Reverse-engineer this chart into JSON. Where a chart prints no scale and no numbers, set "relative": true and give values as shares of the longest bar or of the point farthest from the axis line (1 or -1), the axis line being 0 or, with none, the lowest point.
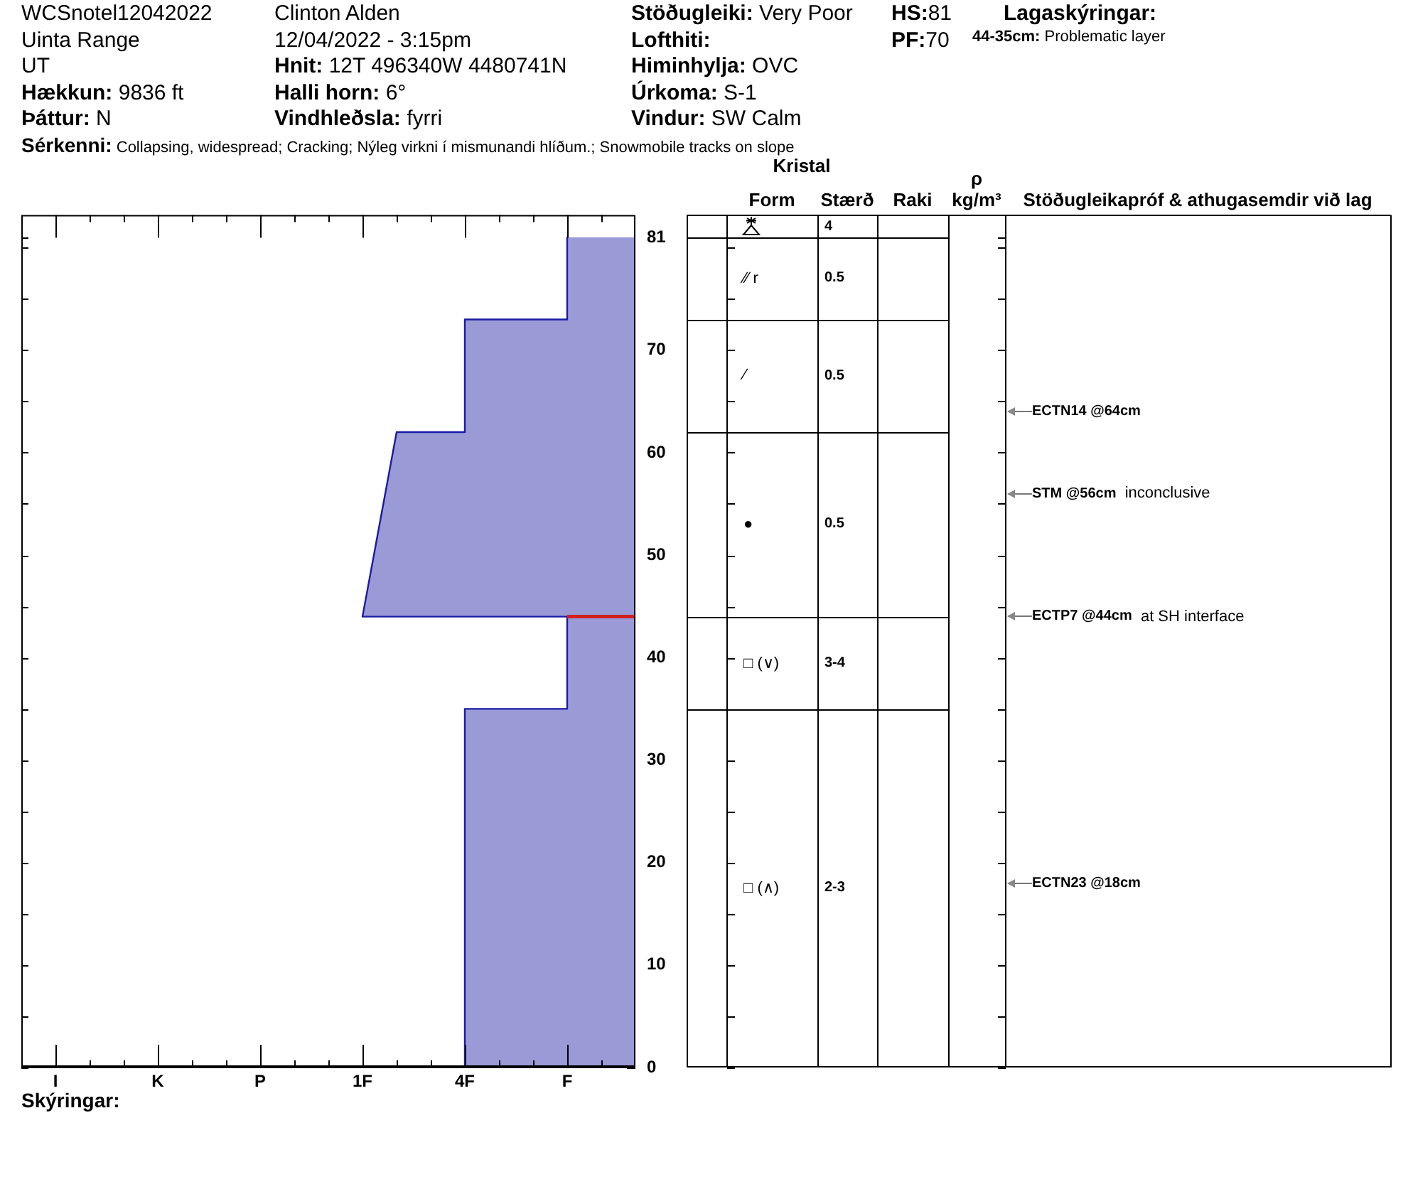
{
  "chart_data": [
    {
      "type": "other",
      "annotations": [
        "WCSnotel12042022",
        "Uinta Range",
        "UT",
        "Hækkun: 9836 ft",
        "Þáttur: N",
        "Clinton Alden",
        "12/04/2022 - 3:15pm",
        "Hnit: 12T 496340W 4480741N",
        "Halli horn: 6°",
        "Vindhleðsla: fyrri",
        "Stöðugleiki: Very Poor",
        "Lofthiti:",
        "Himinhylja: OVC",
        "Úrkoma: S-1",
        "Vindur: SW Calm",
        "HS:81",
        "PF:70",
        "Lagaskýringar:",
        "44-35cm: Problematic layer",
        "Sérkenni: Collapsing, widespread; Cracking; Nýleg virkni í mismunandi hlíðum.; Snowmobile tracks on slope"
      ]
    },
    {
      "type": "area",
      "orientation": "horizontal",
      "relative": true,
      "x": [
        81,
        73,
        73,
        62,
        62,
        44,
        44,
        35,
        35,
        0
      ],
      "series": [
        {
          "color": "#9a9ad6",
          "values": [
            -0.25,
            -0.25,
            -0.625,
            -0.625,
            -0.875,
            -1,
            -0.25,
            -0.25,
            -0.625,
            -0.625
          ]
        },
        {
          "type": "line",
          "color": "#d02020",
          "x": [
            44,
            44
          ],
          "values": [
            -0.25,
            0
          ]
        }
      ],
      "ylim": [
        0,
        83.2
      ],
      "yticks": [
        0,
        {
          "value": 5,
          "label": null
        },
        10,
        {
          "value": 15,
          "label": null
        },
        20,
        {
          "value": 25,
          "label": null
        },
        30,
        {
          "value": 35,
          "label": null
        },
        40,
        {
          "value": 45,
          "label": null
        },
        50,
        {
          "value": 55,
          "label": null
        },
        60,
        {
          "value": 65,
          "label": null
        },
        70,
        {
          "value": 75,
          "label": null
        },
        {
          "value": 80,
          "label": null
        },
        81
      ],
      "annotations": [
        "I",
        "K",
        "P",
        "1F",
        "4F",
        "F",
        "Skýringar:",
        "Kristal",
        "Form",
        "Stærð",
        "Raki",
        "ρ kg/m³",
        "Stöðugleikapróf & athugasemdir við lag",
        "4",
        "⁄⁄ r",
        "0.5",
        "⁄",
        "0.5",
        "●",
        "0.5",
        "□ (∨)",
        "3-4",
        "□ (∧)",
        "2-3",
        "ECTN14 @64cm",
        "STM @56cm  inconclusive",
        "ECTP7 @44cm  at SH interface",
        "ECTN23 @18cm"
      ]
    }
  ]
}
